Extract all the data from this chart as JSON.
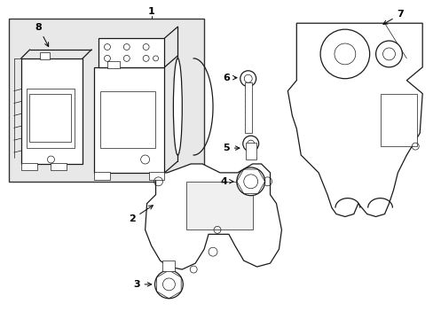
{
  "background": "#ffffff",
  "box_bg": "#e0e0e0",
  "lc": "#1a1a1a",
  "lw_main": 0.9,
  "lw_thin": 0.5,
  "fig_w": 4.89,
  "fig_h": 3.6,
  "dpi": 100
}
